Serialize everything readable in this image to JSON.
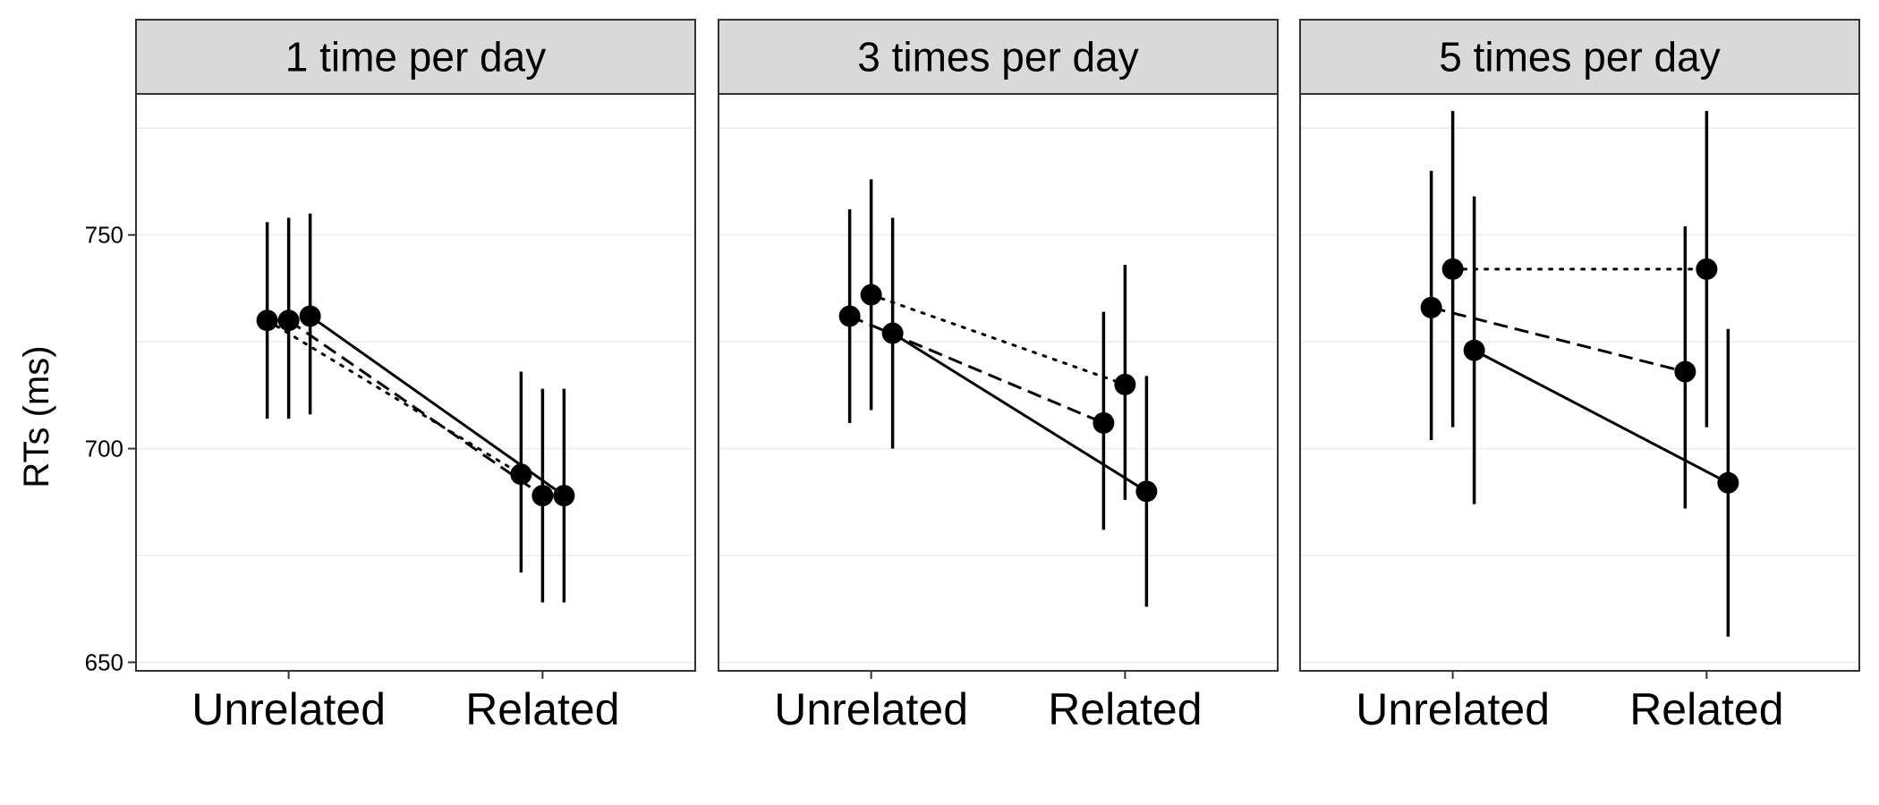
{
  "chart_data": {
    "type": "dot-errorbar-facets",
    "ylabel": "RTs (ms)",
    "ylim": [
      648,
      783
    ],
    "y_ticks": [
      650,
      700,
      750
    ],
    "y_gridlines": [
      650,
      675,
      700,
      725,
      750,
      775
    ],
    "categories": [
      "Unrelated",
      "Related"
    ],
    "panels": [
      {
        "title": "1 time per day",
        "series": [
          {
            "name": "series-1",
            "linestyle": "dotted",
            "offset": -1,
            "means": [
              730,
              694
            ],
            "lower": [
              707,
              671
            ],
            "upper": [
              753,
              718
            ]
          },
          {
            "name": "series-2",
            "linestyle": "dashed",
            "offset": 0,
            "means": [
              730,
              689
            ],
            "lower": [
              707,
              664
            ],
            "upper": [
              754,
              714
            ]
          },
          {
            "name": "series-3",
            "linestyle": "solid",
            "offset": 1,
            "means": [
              731,
              689
            ],
            "lower": [
              708,
              664
            ],
            "upper": [
              755,
              714
            ]
          }
        ]
      },
      {
        "title": "3 times per day",
        "series": [
          {
            "name": "series-1",
            "linestyle": "dashed",
            "offset": -1,
            "means": [
              731,
              706
            ],
            "lower": [
              706,
              681
            ],
            "upper": [
              756,
              732
            ]
          },
          {
            "name": "series-2",
            "linestyle": "dotted",
            "offset": 0,
            "means": [
              736,
              715
            ],
            "lower": [
              709,
              688
            ],
            "upper": [
              763,
              743
            ]
          },
          {
            "name": "series-3",
            "linestyle": "solid",
            "offset": 1,
            "means": [
              727,
              690
            ],
            "lower": [
              700,
              663
            ],
            "upper": [
              754,
              717
            ]
          }
        ]
      },
      {
        "title": "5 times per day",
        "series": [
          {
            "name": "series-1",
            "linestyle": "dashed",
            "offset": -1,
            "means": [
              733,
              718
            ],
            "lower": [
              702,
              686
            ],
            "upper": [
              765,
              752
            ]
          },
          {
            "name": "series-2",
            "linestyle": "dotted",
            "offset": 0,
            "means": [
              742,
              742
            ],
            "lower": [
              705,
              705
            ],
            "upper": [
              779,
              779
            ]
          },
          {
            "name": "series-3",
            "linestyle": "solid",
            "offset": 1,
            "means": [
              723,
              692
            ],
            "lower": [
              687,
              656
            ],
            "upper": [
              759,
              728
            ]
          }
        ]
      }
    ]
  }
}
